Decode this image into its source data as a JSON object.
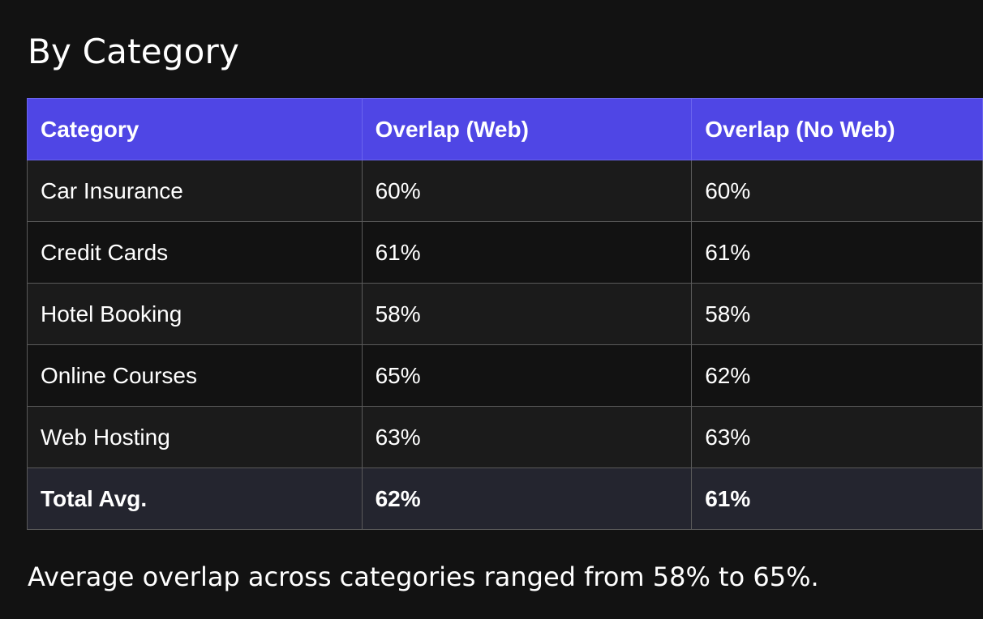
{
  "title": "By Category",
  "table": {
    "headers": [
      "Category",
      "Overlap (Web)",
      "Overlap (No Web)"
    ],
    "rows": [
      [
        "Car Insurance",
        "60%",
        "60%"
      ],
      [
        "Credit Cards",
        "61%",
        "61%"
      ],
      [
        "Hotel Booking",
        "58%",
        "58%"
      ],
      [
        "Online Courses",
        "65%",
        "62%"
      ],
      [
        "Web Hosting",
        "63%",
        "63%"
      ]
    ],
    "total": [
      "Total Avg.",
      "62%",
      "61%"
    ]
  },
  "summary": "Average overlap across categories ranged from 58% to 65%.",
  "colors": {
    "background": "#121212",
    "header_accent": "#4f46e5",
    "row_alt": "#1b1b1b",
    "total_row": "#24252f",
    "text": "#ffffff"
  }
}
